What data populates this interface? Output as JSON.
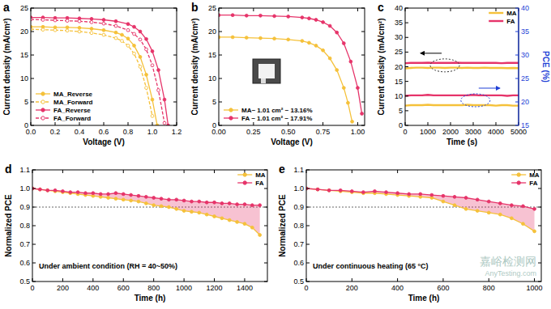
{
  "chart_data": [
    {
      "type": "line",
      "panel": "a",
      "x_label": "Voltage (V)",
      "y_label": "Current density (mA/cm²)",
      "xlim": [
        0,
        1.2
      ],
      "xticks": [
        {
          "value": 0,
          "label": "0.0"
        },
        0.2,
        0.4,
        0.6,
        0.8,
        {
          "value": 1,
          "label": "1.0"
        },
        1.2
      ],
      "ylim": [
        0,
        25
      ],
      "yticks": [
        0,
        5,
        10,
        15,
        20,
        25
      ],
      "legend": "lower left",
      "series": [
        {
          "name": "MA_Reverse",
          "color": "#f5c13a",
          "marker": "circle",
          "line_style": "solid",
          "x": [
            0,
            0.1,
            0.2,
            0.3,
            0.4,
            0.5,
            0.6,
            0.7,
            0.75,
            0.8,
            0.85,
            0.9,
            0.95,
            1.0,
            1.04
          ],
          "values": [
            21.0,
            21.0,
            20.9,
            20.9,
            20.8,
            20.6,
            20.3,
            19.8,
            19.3,
            18.5,
            17.0,
            14.6,
            10.8,
            5.5,
            0
          ]
        },
        {
          "name": "MA_Forward",
          "color": "#f5c13a",
          "marker": "open_circle",
          "line_style": "dashed",
          "x": [
            0,
            0.1,
            0.2,
            0.3,
            0.4,
            0.5,
            0.6,
            0.7,
            0.75,
            0.8,
            0.85,
            0.9,
            0.95,
            1.0
          ],
          "values": [
            20.5,
            20.4,
            20.3,
            20.2,
            20.0,
            19.7,
            19.3,
            18.6,
            18.0,
            17.0,
            15.3,
            12.5,
            8.0,
            2.0
          ]
        },
        {
          "name": "FA_Reverse",
          "color": "#e6346a",
          "marker": "circle",
          "line_style": "solid",
          "x": [
            0,
            0.1,
            0.2,
            0.3,
            0.4,
            0.5,
            0.6,
            0.7,
            0.8,
            0.85,
            0.9,
            0.95,
            1.0,
            1.05,
            1.1,
            1.13
          ],
          "values": [
            23.0,
            23.0,
            22.9,
            22.9,
            22.8,
            22.7,
            22.5,
            22.2,
            21.6,
            21.0,
            20.0,
            18.4,
            15.8,
            11.8,
            5.5,
            0
          ]
        },
        {
          "name": "FA_Forward",
          "color": "#e6346a",
          "marker": "open_circle",
          "line_style": "dashed",
          "x": [
            0,
            0.1,
            0.2,
            0.3,
            0.4,
            0.5,
            0.6,
            0.7,
            0.8,
            0.85,
            0.9,
            0.95,
            1.0,
            1.05,
            1.1
          ],
          "values": [
            22.6,
            22.5,
            22.4,
            22.3,
            22.2,
            22.0,
            21.7,
            21.2,
            20.3,
            19.5,
            18.3,
            16.2,
            12.8,
            7.5,
            0.5
          ]
        }
      ]
    },
    {
      "type": "line",
      "panel": "b",
      "x_label": "Voltage (V)",
      "y_label": "Current density (mA/cm²)",
      "xlim": [
        0,
        1.05
      ],
      "xticks": [
        {
          "value": 0,
          "label": "0.00"
        },
        {
          "value": 0.25,
          "label": "0.25"
        },
        {
          "value": 0.5,
          "label": "0.50"
        },
        {
          "value": 0.75,
          "label": "0.75"
        },
        {
          "value": 1,
          "label": "1.00"
        }
      ],
      "ylim": [
        0,
        25
      ],
      "yticks": [
        0,
        5,
        10,
        15,
        20,
        25
      ],
      "legend": "lower left",
      "series": [
        {
          "name": "MA~ 1.01 cm² ~ 13.16%",
          "color": "#f5c13a",
          "marker": "circle",
          "line_style": "solid",
          "x": [
            0,
            0.1,
            0.2,
            0.3,
            0.4,
            0.5,
            0.6,
            0.65,
            0.7,
            0.75,
            0.8,
            0.85,
            0.9,
            0.93,
            0.96
          ],
          "values": [
            18.8,
            18.8,
            18.7,
            18.6,
            18.5,
            18.3,
            18.0,
            17.6,
            17.0,
            16.0,
            14.3,
            11.8,
            8.0,
            4.8,
            0.8
          ]
        },
        {
          "name": "FA ~ 1.01 cm² ~ 17.91%",
          "color": "#e6346a",
          "marker": "circle",
          "line_style": "solid",
          "x": [
            0,
            0.1,
            0.2,
            0.3,
            0.4,
            0.5,
            0.6,
            0.65,
            0.7,
            0.75,
            0.8,
            0.85,
            0.9,
            0.95,
            1.0,
            1.03
          ],
          "values": [
            23.5,
            23.5,
            23.4,
            23.4,
            23.3,
            23.2,
            23.0,
            22.8,
            22.5,
            22.0,
            21.2,
            19.8,
            17.5,
            13.6,
            8.0,
            2.5
          ]
        }
      ]
    },
    {
      "type": "line",
      "panel": "c",
      "x_label": "Time (s)",
      "y_label": "Current density (mA/cm²)",
      "y2_label": "PCE (%)",
      "xlim": [
        0,
        5000
      ],
      "xticks": [
        0,
        1000,
        2000,
        3000,
        4000,
        5000
      ],
      "ylim": [
        0,
        40
      ],
      "yticks": [
        0,
        5,
        10,
        15,
        20,
        25,
        30,
        35,
        40
      ],
      "y2lim": [
        15,
        40
      ],
      "y2ticks": [
        15,
        20,
        25,
        30,
        35,
        40
      ],
      "legend": "upper right",
      "x": [
        0,
        250,
        500,
        750,
        1000,
        1250,
        1500,
        1750,
        2000,
        2250,
        2500,
        2750,
        3000,
        3250,
        3500,
        3750,
        4000,
        4250,
        4500,
        4750,
        5000
      ],
      "series": [
        {
          "name": "MA",
          "color": "#f5c13a",
          "marker": "none",
          "line_style": "solid",
          "values": [
            19.4,
            19.6,
            19.7,
            19.7,
            19.6,
            19.7,
            19.7,
            19.6,
            19.7,
            19.7,
            19.6,
            19.7,
            19.6,
            19.6,
            19.7,
            19.6,
            19.6,
            19.6,
            19.5,
            19.6,
            19.5
          ]
        },
        {
          "name": "FA",
          "color": "#e6346a",
          "marker": "none",
          "line_style": "solid",
          "values": [
            21.2,
            21.3,
            21.3,
            21.3,
            21.4,
            21.3,
            21.3,
            21.3,
            21.3,
            21.4,
            21.3,
            21.3,
            21.3,
            21.3,
            21.3,
            21.3,
            21.3,
            21.2,
            21.3,
            21.3,
            21.3
          ]
        },
        {
          "name": "MA",
          "color": "#f5c13a",
          "marker": "none",
          "line_style": "solid",
          "axis": "y2",
          "values": [
            19.2,
            19.3,
            19.3,
            19.3,
            19.4,
            19.3,
            19.3,
            19.3,
            19.3,
            19.3,
            19.3,
            19.4,
            19.3,
            19.3,
            19.3,
            19.3,
            19.2,
            19.3,
            19.3,
            19.2,
            19.2
          ]
        },
        {
          "name": "FA",
          "color": "#e6346a",
          "marker": "none",
          "line_style": "solid",
          "axis": "y2",
          "values": [
            21.3,
            21.4,
            21.4,
            21.4,
            21.5,
            21.4,
            21.4,
            21.4,
            21.4,
            21.4,
            21.4,
            21.4,
            21.5,
            21.4,
            21.4,
            21.4,
            21.4,
            21.4,
            21.3,
            21.4,
            21.4
          ]
        }
      ]
    },
    {
      "type": "line",
      "panel": "d",
      "x_label": "Time (h)",
      "y_label": "Normalized PCE",
      "annotation": "Under ambient condition (RH = 40~50%)",
      "threshold": 0.9,
      "xlim": [
        0,
        1550
      ],
      "xticks": [
        0,
        200,
        400,
        600,
        800,
        1000,
        1200,
        1400
      ],
      "ylim": [
        0.5,
        1.1
      ],
      "yticks": [
        0.5,
        0.6,
        0.7,
        0.8,
        0.9,
        {
          "value": 1,
          "label": "1.0"
        },
        1.1
      ],
      "legend": "upper right",
      "x": [
        0,
        50,
        100,
        150,
        200,
        250,
        300,
        350,
        400,
        450,
        500,
        550,
        600,
        650,
        700,
        750,
        800,
        850,
        900,
        950,
        1000,
        1050,
        1100,
        1150,
        1200,
        1250,
        1300,
        1350,
        1400,
        1450,
        1500
      ],
      "series": [
        {
          "name": "MA",
          "color": "#f5c13a",
          "marker": "circle",
          "line_style": "solid",
          "values": [
            1.0,
            0.995,
            0.99,
            0.985,
            0.98,
            0.975,
            0.97,
            0.965,
            0.96,
            0.955,
            0.95,
            0.945,
            0.94,
            0.935,
            0.93,
            0.92,
            0.91,
            0.905,
            0.9,
            0.89,
            0.88,
            0.875,
            0.87,
            0.86,
            0.85,
            0.84,
            0.83,
            0.82,
            0.81,
            0.79,
            0.75
          ]
        },
        {
          "name": "FA",
          "color": "#e6346a",
          "marker": "circle",
          "line_style": "solid",
          "values": [
            1.0,
            0.995,
            0.99,
            0.99,
            0.985,
            0.98,
            0.98,
            0.975,
            0.975,
            0.97,
            0.97,
            0.975,
            0.97,
            0.965,
            0.96,
            0.955,
            0.95,
            0.945,
            0.94,
            0.94,
            0.935,
            0.93,
            0.93,
            0.925,
            0.925,
            0.92,
            0.92,
            0.915,
            0.915,
            0.91,
            0.91
          ]
        }
      ]
    },
    {
      "type": "line",
      "panel": "e",
      "x_label": "Time (h)",
      "y_label": "Normalized PCE",
      "annotation": "Under continuous heating (65 °C)",
      "threshold": 0.9,
      "xlim": [
        0,
        1030
      ],
      "xticks": [
        0,
        200,
        400,
        600,
        800,
        1000
      ],
      "ylim": [
        0.5,
        1.1
      ],
      "yticks": [
        0.5,
        0.6,
        0.7,
        0.8,
        0.9,
        {
          "value": 1,
          "label": "1.0"
        },
        1.1
      ],
      "legend": "upper right",
      "x": [
        0,
        50,
        100,
        150,
        200,
        250,
        300,
        350,
        400,
        450,
        500,
        550,
        600,
        650,
        700,
        750,
        800,
        850,
        900,
        950,
        1000
      ],
      "series": [
        {
          "name": "MA",
          "color": "#f5c13a",
          "marker": "circle",
          "line_style": "solid",
          "values": [
            1.0,
            0.995,
            0.99,
            0.985,
            0.98,
            0.975,
            0.975,
            0.97,
            0.965,
            0.96,
            0.955,
            0.95,
            0.93,
            0.91,
            0.89,
            0.88,
            0.87,
            0.86,
            0.84,
            0.81,
            0.77
          ]
        },
        {
          "name": "FA",
          "color": "#e6346a",
          "marker": "circle",
          "line_style": "solid",
          "values": [
            1.0,
            0.995,
            0.99,
            0.99,
            0.985,
            0.98,
            0.985,
            0.98,
            0.975,
            0.97,
            0.97,
            0.965,
            0.96,
            0.955,
            0.95,
            0.94,
            0.93,
            0.92,
            0.91,
            0.905,
            0.89
          ]
        }
      ]
    }
  ],
  "watermark": [
    "嘉峪检测网",
    "AnyTesting.com"
  ]
}
